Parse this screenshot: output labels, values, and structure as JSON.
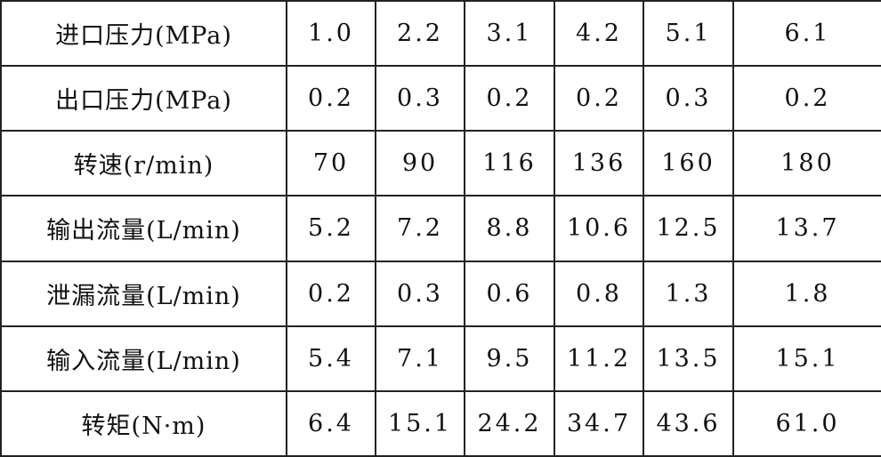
{
  "table": {
    "rows": [
      {
        "label": "进口压力(MPa)",
        "values": [
          "1.0",
          "2.2",
          "3.1",
          "4.2",
          "5.1",
          "6.1"
        ]
      },
      {
        "label": "出口压力(MPa)",
        "values": [
          "0.2",
          "0.3",
          "0.2",
          "0.2",
          "0.3",
          "0.2"
        ]
      },
      {
        "label": "转速(r/min)",
        "values": [
          "70",
          "90",
          "116",
          "136",
          "160",
          "180"
        ]
      },
      {
        "label": "输出流量(L/min)",
        "values": [
          "5.2",
          "7.2",
          "8.8",
          "10.6",
          "12.5",
          "13.7"
        ]
      },
      {
        "label": "泄漏流量(L/min)",
        "values": [
          "0.2",
          "0.3",
          "0.6",
          "0.8",
          "1.3",
          "1.8"
        ]
      },
      {
        "label": "输入流量(L/min)",
        "values": [
          "5.4",
          "7.1",
          "9.5",
          "11.2",
          "13.5",
          "15.1"
        ]
      },
      {
        "label": "转矩(N·m)",
        "values": [
          "6.4",
          "15.1",
          "24.2",
          "34.7",
          "43.6",
          "61.0"
        ]
      }
    ]
  }
}
